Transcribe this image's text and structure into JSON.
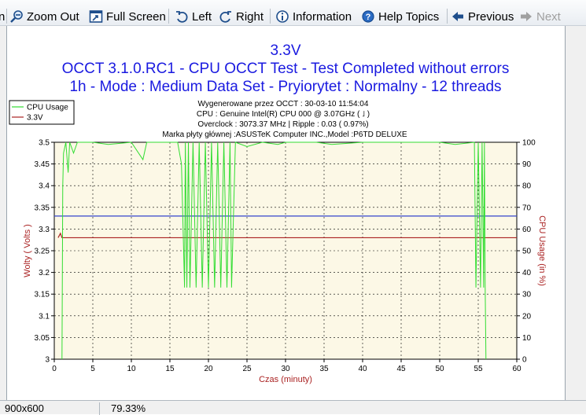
{
  "toolbar": {
    "zoom_in": "n",
    "zoom_out": "Zoom Out",
    "full_screen": "Full Screen",
    "left": "Left",
    "right": "Right",
    "information": "Information",
    "help_topics": "Help Topics",
    "previous": "Previous",
    "next": "Next"
  },
  "status": {
    "dimensions": "900x600",
    "zoom": "79.33%"
  },
  "chart": {
    "title1": "3.3V",
    "title2": "OCCT 3.1.0.RC1 - CPU OCCT Test - Test Completed without errors",
    "title3": "1h - Mode : Medium Data Set - Pryiorytet : Normalny - 12 threads",
    "info1": "Wygenerowane przez OCCT : 30-03-10 11:54:04",
    "info2": "CPU : Genuine Intel(R) CPU 000 @ 3.07GHz ( ˩ )",
    "info3": "Overclock : 3073.37 MHz | Ripple : 0.03 ( 0.97%)",
    "info4": "Marka płyty głównej :ASUSTeK Computer INC.,Model :P6TD DELUXE",
    "colors": {
      "cpu": "#33dd33",
      "voltage": "#aa2222",
      "ref": "#3344cc",
      "title": "#1a1ae0",
      "axis_left_label": "#aa2222"
    }
  },
  "chart_data": {
    "type": "line",
    "xlabel": "Czas (minuty)",
    "ylabel": "Wolty ( Volts )",
    "y2label": "CPU Usage (in %)",
    "xlim": [
      0,
      60
    ],
    "ylim": [
      3,
      3.5
    ],
    "y2lim": [
      0,
      100
    ],
    "x_ticks": [
      "0",
      "5",
      "10",
      "15",
      "20",
      "25",
      "30",
      "35",
      "40",
      "45",
      "50",
      "55",
      "60"
    ],
    "y_ticks": [
      "3",
      "3.05",
      "3.1",
      "3.15",
      "3.2",
      "3.25",
      "3.3",
      "3.35",
      "3.4",
      "3.45",
      "3.5"
    ],
    "y2_ticks": [
      "0",
      "10",
      "20",
      "30",
      "40",
      "50",
      "60",
      "70",
      "80",
      "90",
      "100"
    ],
    "legend": [
      "CPU Usage",
      "3.3V"
    ],
    "legend_position": "top-left",
    "grid": true,
    "reference_line": 3.33,
    "series": [
      {
        "name": "3.3V",
        "x": [
          0.5,
          0.8,
          1.0,
          1.2,
          60
        ],
        "y": [
          3.28,
          3.29,
          3.28,
          3.28,
          3.28
        ]
      },
      {
        "name": "CPU Usage",
        "x": [
          1.0,
          1.1,
          1.2,
          1.5,
          1.8,
          2.0,
          2.5,
          3.0,
          5.0,
          7.0,
          10.0,
          11.5,
          12.0,
          16.0,
          16.5,
          16.9,
          17.0,
          17.2,
          17.4,
          17.6,
          18.0,
          18.4,
          18.8,
          19.2,
          19.6,
          20.0,
          20.4,
          20.8,
          21.2,
          21.6,
          22.0,
          22.4,
          22.8,
          23.0,
          23.5,
          25.0,
          27.0,
          29.0,
          30.0,
          34.0,
          36.0,
          40.0,
          50.0,
          52.0,
          54.5,
          54.7,
          55.0,
          55.3,
          55.5,
          55.7,
          55.8,
          55.9,
          56.0
        ],
        "y": [
          0,
          80,
          95,
          100,
          86,
          100,
          95,
          100,
          100,
          99,
          100,
          92,
          100,
          100,
          90,
          33,
          100,
          33,
          100,
          33,
          100,
          33,
          100,
          33,
          100,
          33,
          100,
          33,
          100,
          33,
          100,
          33,
          100,
          33,
          100,
          98,
          100,
          99,
          100,
          100,
          99,
          100,
          100,
          99,
          100,
          33,
          100,
          33,
          100,
          33,
          100,
          33,
          0
        ]
      }
    ]
  }
}
